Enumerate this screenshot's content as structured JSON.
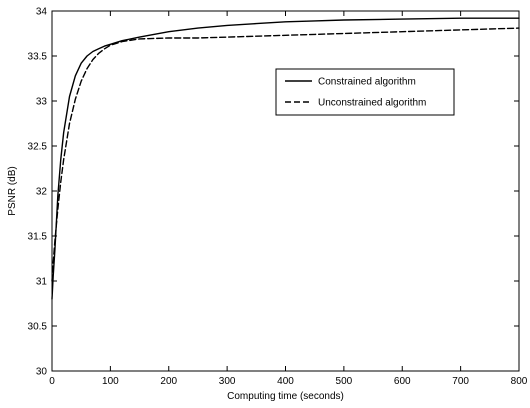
{
  "chart_data": {
    "type": "line",
    "xlabel": "Computing time (seconds)",
    "ylabel": "PSNR (dB)",
    "xlim": [
      0,
      800
    ],
    "ylim": [
      30,
      34
    ],
    "xticks": [
      "0",
      "100",
      "200",
      "300",
      "400",
      "500",
      "600",
      "700",
      "800"
    ],
    "yticks": [
      "30",
      "30.5",
      "31",
      "31.5",
      "32",
      "32.5",
      "33",
      "33.5",
      "34"
    ],
    "grid": false,
    "legend_position": "top-right",
    "series": [
      {
        "name": "Constrained algorithm",
        "line_style": "solid",
        "x": [
          0,
          2,
          5,
          10,
          15,
          20,
          30,
          40,
          50,
          60,
          70,
          80,
          90,
          100,
          120,
          150,
          200,
          250,
          300,
          350,
          400,
          450,
          500,
          600,
          700,
          800
        ],
        "y": [
          30.8,
          31.05,
          31.35,
          31.95,
          32.35,
          32.65,
          33.05,
          33.28,
          33.42,
          33.5,
          33.55,
          33.58,
          33.61,
          33.63,
          33.67,
          33.71,
          33.77,
          33.81,
          33.84,
          33.86,
          33.88,
          33.89,
          33.9,
          33.91,
          33.92,
          33.92
        ]
      },
      {
        "name": "Unconstrained algorithm",
        "line_style": "dashed",
        "x": [
          0,
          2,
          5,
          10,
          15,
          20,
          30,
          40,
          50,
          60,
          70,
          80,
          90,
          100,
          120,
          150,
          200,
          250,
          300,
          350,
          400,
          450,
          500,
          550,
          600,
          650,
          700,
          750,
          800
        ],
        "y": [
          31.0,
          31.2,
          31.45,
          31.8,
          32.1,
          32.35,
          32.75,
          33.02,
          33.22,
          33.36,
          33.46,
          33.53,
          33.58,
          33.62,
          33.66,
          33.69,
          33.7,
          33.7,
          33.71,
          33.72,
          33.73,
          33.74,
          33.75,
          33.76,
          33.77,
          33.78,
          33.79,
          33.8,
          33.81
        ]
      }
    ]
  }
}
